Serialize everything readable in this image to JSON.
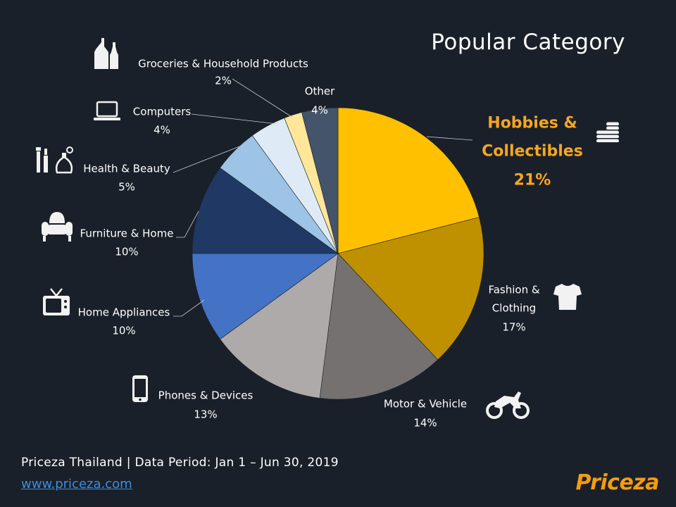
{
  "title": "Popular Category",
  "footer": {
    "source": "Priceza Thailand | Data Period: Jan 1 – Jun 30, 2019",
    "link": "www.priceza.com",
    "logo": "Priceza"
  },
  "chart_data": {
    "type": "pie",
    "title": "Popular Category",
    "start_angle_deg": 0,
    "direction": "clockwise",
    "slices": [
      {
        "name": "Hobbies & Collectibles",
        "value": 21,
        "label": "21%",
        "color": "#ffc000",
        "icon": "coins-icon",
        "highlight": true,
        "highlight_color": "#f5a623"
      },
      {
        "name": "Fashion & Clothing",
        "value": 17,
        "label": "17%",
        "color": "#bf9000",
        "icon": "tshirt-icon"
      },
      {
        "name": "Motor & Vehicle",
        "value": 14,
        "label": "14%",
        "color": "#767171",
        "icon": "motorcycle-icon"
      },
      {
        "name": "Phones & Devices",
        "value": 13,
        "label": "13%",
        "color": "#aeaaaa",
        "icon": "smartphone-icon"
      },
      {
        "name": "Home Appliances",
        "value": 10,
        "label": "10%",
        "color": "#4472c4",
        "icon": "tv-icon"
      },
      {
        "name": "Furniture & Home",
        "value": 10,
        "label": "10%",
        "color": "#1f3864",
        "icon": "armchair-icon"
      },
      {
        "name": "Health & Beauty",
        "value": 5,
        "label": "5%",
        "color": "#9dc3e6",
        "icon": "cosmetics-icon"
      },
      {
        "name": "Computers",
        "value": 4,
        "label": "4%",
        "color": "#deebf7",
        "icon": "laptop-icon"
      },
      {
        "name": "Groceries & Household Products",
        "value": 2,
        "label": "2%",
        "color": "#ffe699",
        "icon": "bottles-icon"
      },
      {
        "name": "Other",
        "value": 4,
        "label": "4%",
        "color": "#44546a",
        "icon": ""
      }
    ]
  }
}
